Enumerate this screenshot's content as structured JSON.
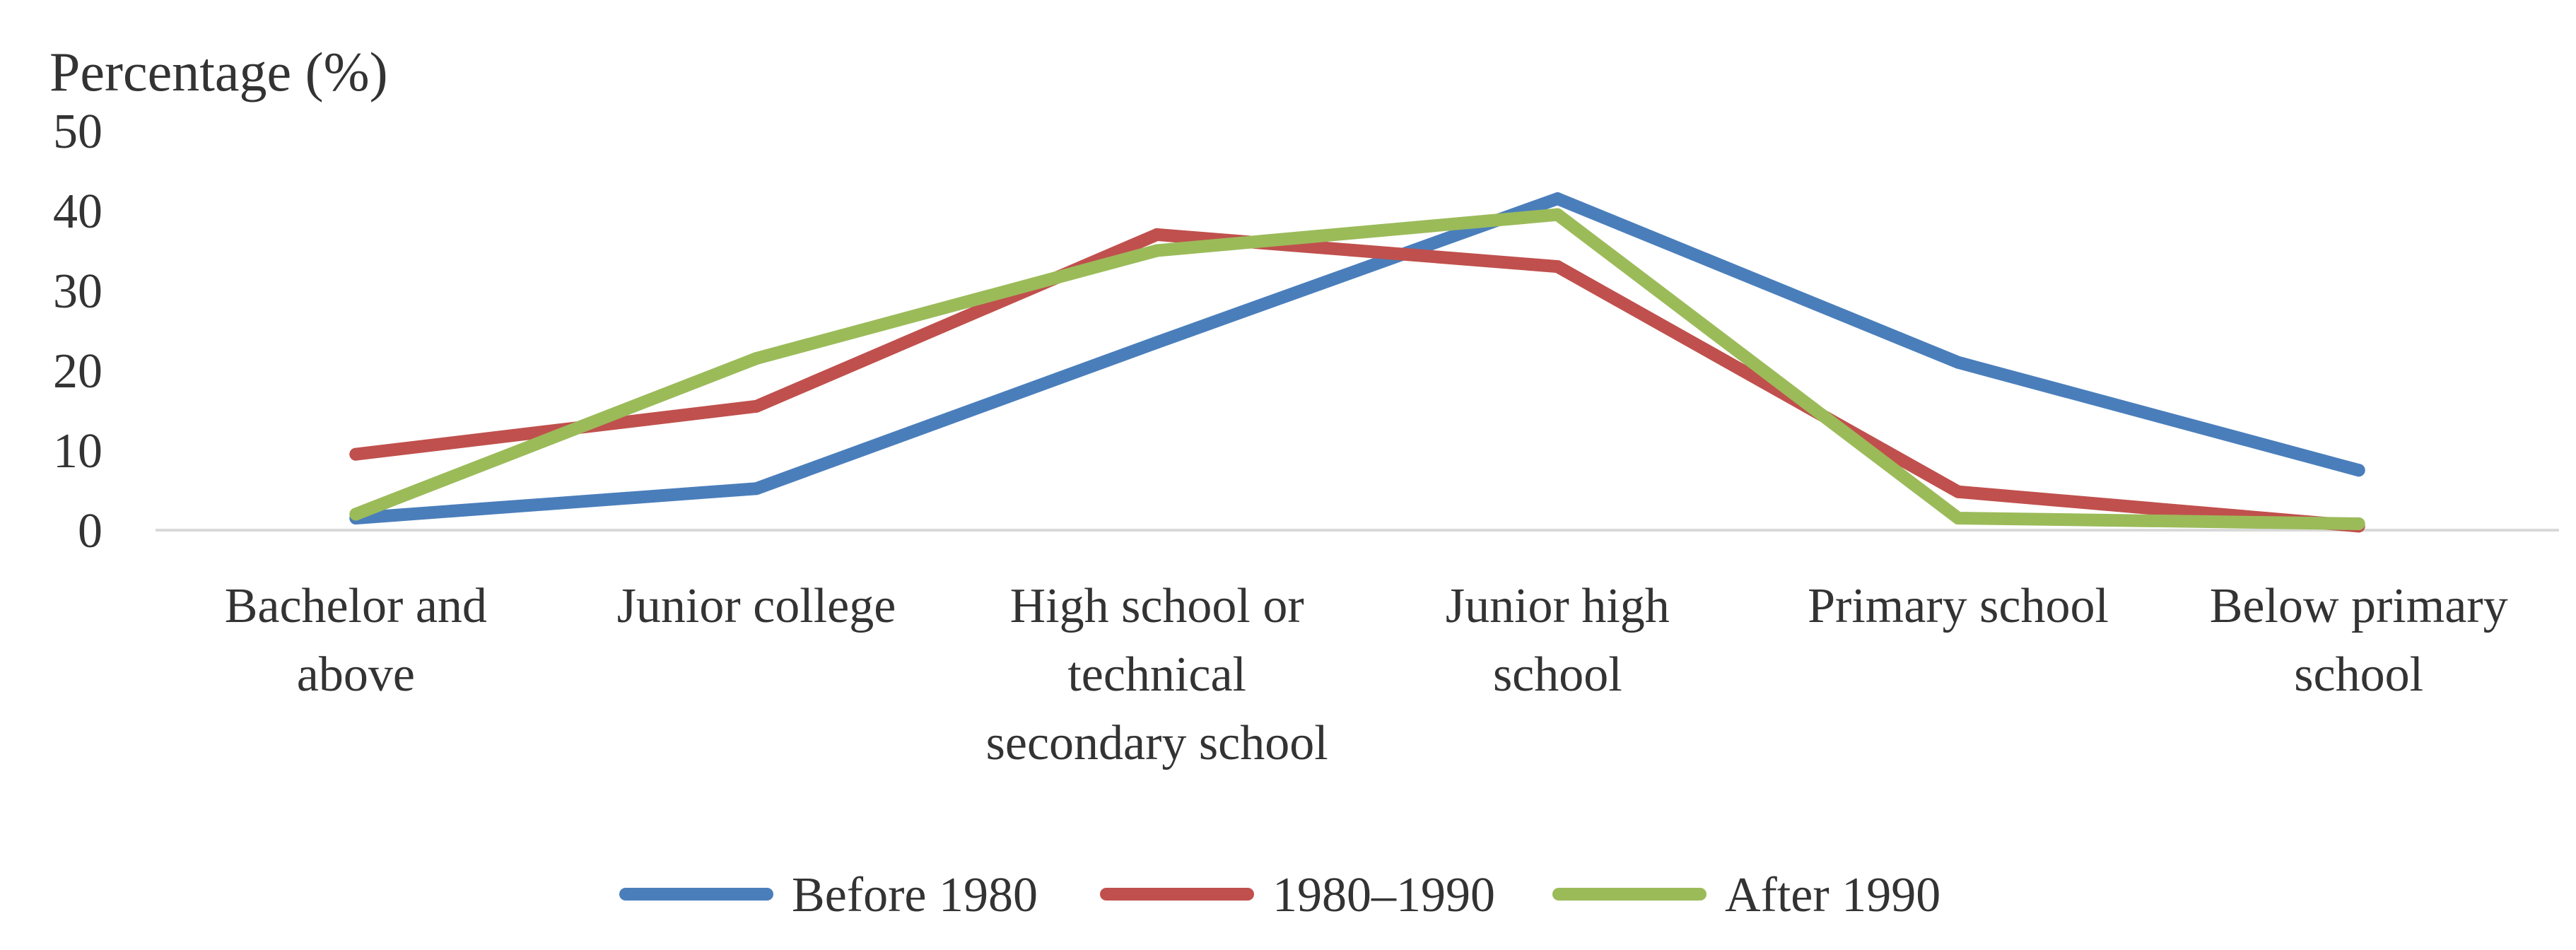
{
  "chart_data": {
    "type": "line",
    "title": "",
    "xlabel": "",
    "ylabel": "Percentage (%)",
    "ylim": [
      0,
      50
    ],
    "yticks": [
      0,
      10,
      20,
      30,
      40,
      50
    ],
    "grid": false,
    "legend_position": "bottom",
    "categories": [
      [
        "Bachelor and",
        "above"
      ],
      [
        "Junior college"
      ],
      [
        "High school or",
        "technical",
        "secondary school"
      ],
      [
        "Junior high",
        "school"
      ],
      [
        "Primary school"
      ],
      [
        "Below primary",
        "school"
      ]
    ],
    "series": [
      {
        "name": "Before 1980",
        "color": "#4a7ebb",
        "values": [
          1.5,
          5.2,
          23.5,
          41.5,
          21.0,
          7.5
        ]
      },
      {
        "name": "1980–1990",
        "color": "#c0504d",
        "values": [
          9.5,
          15.5,
          37.0,
          33.0,
          4.8,
          0.5
        ]
      },
      {
        "name": "After 1990",
        "color": "#9bbb59",
        "values": [
          2.0,
          21.5,
          35.0,
          39.5,
          1.5,
          0.8
        ]
      }
    ]
  }
}
